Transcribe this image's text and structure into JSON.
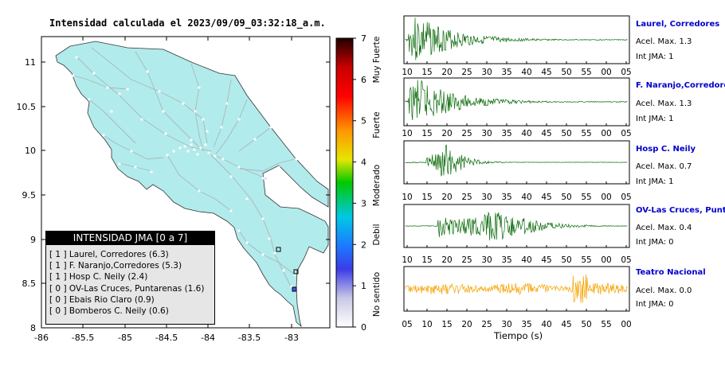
{
  "map": {
    "title": "Intensidad calculada el 2023/09/09_03:32:18_a.m.",
    "x_ticks": [
      "-86",
      "-85.5",
      "-85",
      "-84.5",
      "-84",
      "-83.5",
      "-83"
    ],
    "y_ticks": [
      "11",
      "10.5",
      "10",
      "9.5",
      "9",
      "8.5",
      "8"
    ],
    "land_color": "#b2ebeb",
    "road_color": "#a8b8b8"
  },
  "colorbar": {
    "ticks": [
      "0",
      "1",
      "2",
      "3",
      "4",
      "5",
      "6",
      "7"
    ],
    "labels": [
      "No sentido",
      "Debil",
      "Moderado",
      "Fuerte",
      "Muy Fuerte"
    ]
  },
  "legend": {
    "title": "INTENSIDAD JMA [0 a 7]",
    "rows": [
      {
        "jma": "[ 1 ]",
        "name": "Laurel, Corredores (6.3)"
      },
      {
        "jma": "[ 1 ]",
        "name": "F. Naranjo,Corredores (5.3)"
      },
      {
        "jma": "[ 1 ]",
        "name": "Hosp C. Neily (2.4)"
      },
      {
        "jma": "[ 0 ]",
        "name": "OV-Las Cruces, Puntarenas (1.6)"
      },
      {
        "jma": "[ 0 ]",
        "name": "Ebais Rio Claro (0.9)"
      },
      {
        "jma": "[ 0 ]",
        "name": "Bomberos C. Neily (0.6)"
      }
    ]
  },
  "waveforms": [
    {
      "station": "Laurel, Corredores",
      "acel": "Acel. Max. 1.3",
      "int": "Int JMA: 1",
      "color": "#0a6b0a",
      "ticks": [
        "10",
        "15",
        "20",
        "25",
        "30",
        "35",
        "40",
        "45",
        "50",
        "55",
        "00",
        "05"
      ]
    },
    {
      "station": "F. Naranjo,Corredores",
      "acel": "Acel. Max. 1.3",
      "int": "Int JMA: 1",
      "color": "#0a6b0a",
      "ticks": [
        "10",
        "15",
        "20",
        "25",
        "30",
        "35",
        "40",
        "45",
        "50",
        "55",
        "00",
        "05"
      ]
    },
    {
      "station": "Hosp C. Neily",
      "acel": "Acel. Max. 0.7",
      "int": "Int JMA: 1",
      "color": "#0a6b0a",
      "ticks": [
        "10",
        "15",
        "20",
        "25",
        "30",
        "35",
        "40",
        "45",
        "50",
        "55",
        "00",
        "05"
      ]
    },
    {
      "station": "OV-Las Cruces, Puntar",
      "acel": "Acel. Max. 0.4",
      "int": "Int JMA: 0",
      "color": "#0a6b0a",
      "ticks": [
        "10",
        "15",
        "20",
        "25",
        "30",
        "35",
        "40",
        "45",
        "50",
        "55",
        "00",
        "05"
      ]
    },
    {
      "station": "Teatro Nacional",
      "acel": "Acel. Max. 0.0",
      "int": "Int JMA: 0",
      "color": "#f5a300",
      "ticks": [
        "05",
        "10",
        "15",
        "20",
        "25",
        "30",
        "35",
        "40",
        "45",
        "50",
        "55",
        "00"
      ]
    }
  ],
  "xlabel": "Tiempo (s)",
  "chart_data": [
    {
      "type": "scatter",
      "title": "Intensidad calculada el 2023/09/09_03:32:18_a.m.",
      "xlim": [
        -86,
        -82.6
      ],
      "ylim": [
        8,
        11.3
      ],
      "stations": [
        {
          "name": "Laurel, Corredores",
          "x": -82.93,
          "y": 8.57
        },
        {
          "name": "Hosp C. Neily",
          "x": -82.95,
          "y": 8.64
        },
        {
          "name": "OV-Las Cruces, Puntarenas",
          "x": -82.97,
          "y": 8.79
        }
      ]
    },
    {
      "type": "line",
      "xlabel": "Tiempo (s)",
      "series": [
        {
          "name": "Laurel, Corredores",
          "accel_max": 1.3,
          "int_jma": 1
        },
        {
          "name": "F. Naranjo,Corredores",
          "accel_max": 1.3,
          "int_jma": 1
        },
        {
          "name": "Hosp C. Neily",
          "accel_max": 0.7,
          "int_jma": 1
        },
        {
          "name": "OV-Las Cruces, Puntar",
          "accel_max": 0.4,
          "int_jma": 0
        },
        {
          "name": "Teatro Nacional",
          "accel_max": 0.0,
          "int_jma": 0
        }
      ]
    }
  ]
}
